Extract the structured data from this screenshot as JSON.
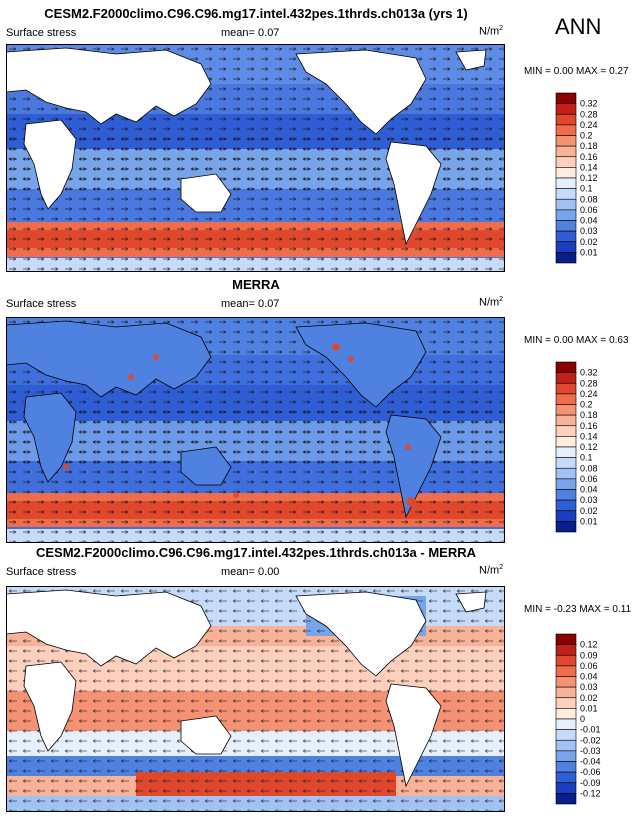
{
  "season": "ANN",
  "panels": [
    {
      "title": "CESM2.F2000climo.C96.C96.mg17.intel.432pes.1thrds.ch013a (yrs 1)",
      "variable": "Surface stress",
      "mean_label": "mean=",
      "mean_value": "0.07",
      "units": "N/m",
      "units_exp": "2",
      "min_label": "MIN =",
      "min_value": "0.00",
      "max_label": "MAX =",
      "max_value": "0.27",
      "colorbar": {
        "labels": [
          "0.32",
          "0.28",
          "0.24",
          "0.2",
          "0.18",
          "0.16",
          "0.14",
          "0.12",
          "0.1",
          "0.08",
          "0.06",
          "0.04",
          "0.03",
          "0.02",
          "0.01"
        ],
        "colors": [
          "#8b0000",
          "#c3201a",
          "#e0482e",
          "#ef6d4a",
          "#f59273",
          "#f9b298",
          "#fcd0bc",
          "#fdecdf",
          "#e6effd",
          "#c6daf9",
          "#a2c2f3",
          "#78a4ea",
          "#4f82e0",
          "#2f5ed4",
          "#1a3ec0",
          "#0a1e8a"
        ]
      }
    },
    {
      "title": "MERRA",
      "variable": "Surface stress",
      "mean_label": "mean=",
      "mean_value": "0.07",
      "units": "N/m",
      "units_exp": "2",
      "min_label": "MIN =",
      "min_value": "0.00",
      "max_label": "MAX =",
      "max_value": "0.63",
      "colorbar": {
        "labels": [
          "0.32",
          "0.28",
          "0.24",
          "0.2",
          "0.18",
          "0.16",
          "0.14",
          "0.12",
          "0.1",
          "0.08",
          "0.06",
          "0.04",
          "0.03",
          "0.02",
          "0.01"
        ],
        "colors": [
          "#8b0000",
          "#c3201a",
          "#e0482e",
          "#ef6d4a",
          "#f59273",
          "#f9b298",
          "#fcd0bc",
          "#fdecdf",
          "#e6effd",
          "#c6daf9",
          "#a2c2f3",
          "#78a4ea",
          "#4f82e0",
          "#2f5ed4",
          "#1a3ec0",
          "#0a1e8a"
        ]
      }
    },
    {
      "title": "CESM2.F2000climo.C96.C96.mg17.intel.432pes.1thrds.ch013a - MERRA",
      "variable": "Surface stress",
      "mean_label": "mean=",
      "mean_value": "0.00",
      "units": "N/m",
      "units_exp": "2",
      "min_label": "MIN =",
      "min_value": "-0.23",
      "max_label": "MAX =",
      "max_value": "0.11",
      "colorbar": {
        "labels": [
          "0.12",
          "0.09",
          "0.06",
          "0.04",
          "0.03",
          "0.02",
          "0.01",
          "0",
          "-0.01",
          "-0.02",
          "-0.03",
          "-0.04",
          "-0.06",
          "-0.09",
          "-0.12"
        ],
        "colors": [
          "#8b0000",
          "#c3201a",
          "#e0482e",
          "#ef6d4a",
          "#f59273",
          "#f9b298",
          "#fcd0bc",
          "#fdecdf",
          "#e6effd",
          "#c6daf9",
          "#a2c2f3",
          "#78a4ea",
          "#4f82e0",
          "#2f5ed4",
          "#1a3ec0",
          "#0a1e8a"
        ]
      }
    }
  ]
}
